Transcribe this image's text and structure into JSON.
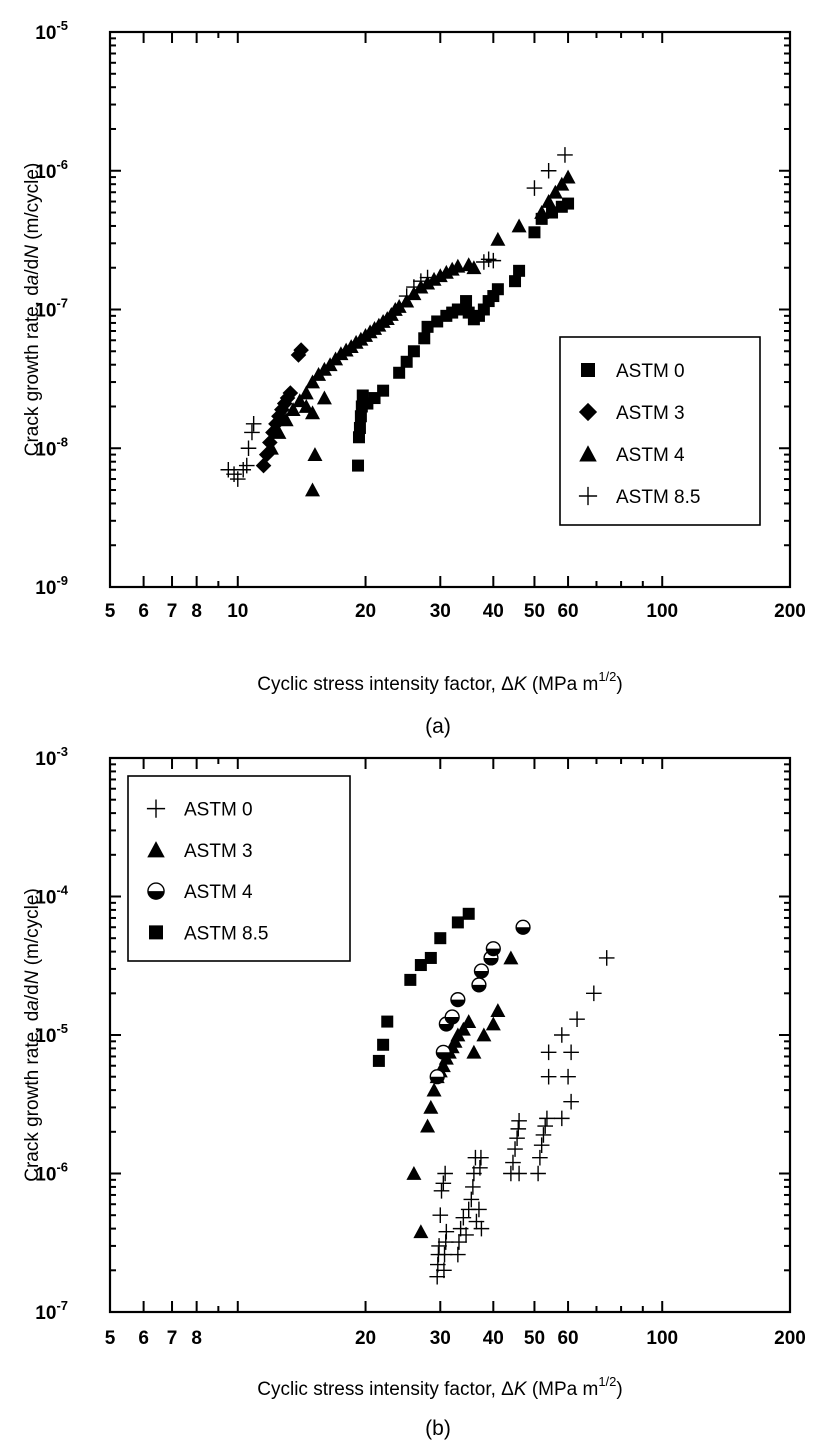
{
  "chart_data": [
    {
      "id": "a",
      "type": "scatter",
      "caption": "(a)",
      "x_scale": "log",
      "y_scale": "log",
      "xlim": [
        5,
        200
      ],
      "ylim": [
        1e-09,
        1e-05
      ],
      "x_tick_labels": [
        {
          "value": 5,
          "label": "5"
        },
        {
          "value": 6,
          "label": "6"
        },
        {
          "value": 7,
          "label": "7"
        },
        {
          "value": 8,
          "label": "8"
        },
        {
          "value": 10,
          "label": "10"
        },
        {
          "value": 20,
          "label": "20"
        },
        {
          "value": 30,
          "label": "30"
        },
        {
          "value": 40,
          "label": "40"
        },
        {
          "value": 50,
          "label": "50"
        },
        {
          "value": 60,
          "label": "60"
        },
        {
          "value": 100,
          "label": "100"
        },
        {
          "value": 200,
          "label": "200"
        }
      ],
      "y_tick_labels": [
        {
          "value": 1e-09,
          "base": "10",
          "exp": "-9"
        },
        {
          "value": 1e-08,
          "base": "10",
          "exp": "-8"
        },
        {
          "value": 1e-07,
          "base": "10",
          "exp": "-7"
        },
        {
          "value": 1e-06,
          "base": "10",
          "exp": "-6"
        },
        {
          "value": 1e-05,
          "base": "10",
          "exp": "-5"
        }
      ],
      "xlabel": {
        "main": "Cyclic stress intensity factor, ",
        "symbol": "Δ",
        "var": "K",
        "unit_open": " (MPa m",
        "unit_exp": "1/2",
        "unit_close": ")"
      },
      "ylabel": {
        "main": "Crack growth rate, d",
        "var1": "a",
        "mid": "/d",
        "var2": "N",
        "unit": " (m/cycle)"
      },
      "grid": false,
      "legend": "middle-right",
      "series": [
        {
          "name": "ASTM 0",
          "marker": "square",
          "points": [
            [
              19.2,
              7.5e-09
            ],
            [
              19.3,
              1.2e-08
            ],
            [
              19.4,
              1.4e-08
            ],
            [
              19.5,
              1.7e-08
            ],
            [
              19.6,
              2e-08
            ],
            [
              19.7,
              2.4e-08
            ],
            [
              20.2,
              2.1e-08
            ],
            [
              21.0,
              2.3e-08
            ],
            [
              22.0,
              2.6e-08
            ],
            [
              24.0,
              3.5e-08
            ],
            [
              25.0,
              4.2e-08
            ],
            [
              26.0,
              5e-08
            ],
            [
              27.5,
              6.2e-08
            ],
            [
              28.0,
              7.5e-08
            ],
            [
              29.5,
              8.2e-08
            ],
            [
              31.0,
              9e-08
            ],
            [
              32.0,
              9.5e-08
            ],
            [
              33.0,
              1e-07
            ],
            [
              34.5,
              1.15e-07
            ],
            [
              35.0,
              9.5e-08
            ],
            [
              36.0,
              8.5e-08
            ],
            [
              37.0,
              9e-08
            ],
            [
              38.0,
              1e-07
            ],
            [
              39.0,
              1.15e-07
            ],
            [
              40.0,
              1.25e-07
            ],
            [
              41.0,
              1.4e-07
            ],
            [
              45.0,
              1.6e-07
            ],
            [
              46.0,
              1.9e-07
            ],
            [
              50.0,
              3.6e-07
            ],
            [
              52.0,
              4.5e-07
            ],
            [
              55.0,
              5e-07
            ],
            [
              58.0,
              5.5e-07
            ],
            [
              60.0,
              5.8e-07
            ]
          ]
        },
        {
          "name": "ASTM 3",
          "marker": "diamond",
          "points": [
            [
              11.5,
              7.5e-09
            ],
            [
              11.7,
              9e-09
            ],
            [
              11.9,
              1.1e-08
            ],
            [
              12.1,
              1.3e-08
            ],
            [
              12.3,
              1.5e-08
            ],
            [
              12.5,
              1.7e-08
            ],
            [
              12.7,
              1.9e-08
            ],
            [
              12.9,
              2.1e-08
            ],
            [
              13.1,
              2.3e-08
            ],
            [
              13.3,
              2.5e-08
            ],
            [
              13.9,
              4.7e-08
            ],
            [
              14.1,
              5.1e-08
            ]
          ]
        },
        {
          "name": "ASTM 4",
          "marker": "triangle",
          "points": [
            [
              12.0,
              1e-08
            ],
            [
              12.5,
              1.3e-08
            ],
            [
              13.0,
              1.6e-08
            ],
            [
              13.5,
              1.9e-08
            ],
            [
              14.0,
              2.2e-08
            ],
            [
              14.5,
              2.5e-08
            ],
            [
              15.0,
              3e-08
            ],
            [
              15.5,
              3.4e-08
            ],
            [
              16.0,
              3.7e-08
            ],
            [
              16.5,
              4e-08
            ],
            [
              17.0,
              4.4e-08
            ],
            [
              17.5,
              4.8e-08
            ],
            [
              18.0,
              5.1e-08
            ],
            [
              18.5,
              5.4e-08
            ],
            [
              19.0,
              5.8e-08
            ],
            [
              19.5,
              6.1e-08
            ],
            [
              20.0,
              6.5e-08
            ],
            [
              20.5,
              6.9e-08
            ],
            [
              21.0,
              7.3e-08
            ],
            [
              21.5,
              7.7e-08
            ],
            [
              22.0,
              8.2e-08
            ],
            [
              22.5,
              8.6e-08
            ],
            [
              23.0,
              9.2e-08
            ],
            [
              23.5,
              1e-07
            ],
            [
              24.0,
              1.05e-07
            ],
            [
              25.0,
              1.15e-07
            ],
            [
              26.0,
              1.3e-07
            ],
            [
              27.0,
              1.45e-07
            ],
            [
              28.0,
              1.55e-07
            ],
            [
              29.0,
              1.65e-07
            ],
            [
              30.0,
              1.75e-07
            ],
            [
              31.0,
              1.85e-07
            ],
            [
              32.0,
              1.95e-07
            ],
            [
              33.0,
              2.05e-07
            ],
            [
              35.0,
              2.1e-07
            ],
            [
              36.0,
              2e-07
            ],
            [
              15.0,
              1.8e-08
            ],
            [
              15.2,
              9e-09
            ],
            [
              15.0,
              5e-09
            ],
            [
              16.0,
              2.3e-08
            ],
            [
              14.5,
              2e-08
            ],
            [
              41.0,
              3.2e-07
            ],
            [
              46.0,
              4e-07
            ],
            [
              52.0,
              5e-07
            ],
            [
              54.0,
              6e-07
            ],
            [
              56.0,
              7e-07
            ],
            [
              58.0,
              8e-07
            ],
            [
              60.0,
              9e-07
            ]
          ]
        },
        {
          "name": "ASTM 8.5",
          "marker": "plus",
          "points": [
            [
              9.5,
              7e-09
            ],
            [
              9.8,
              6.5e-09
            ],
            [
              10.0,
              6e-09
            ],
            [
              10.3,
              7e-09
            ],
            [
              10.5,
              7.5e-09
            ],
            [
              10.6,
              1e-08
            ],
            [
              10.8,
              1.3e-08
            ],
            [
              10.9,
              1.5e-08
            ],
            [
              25.0,
              1.25e-07
            ],
            [
              26.0,
              1.45e-07
            ],
            [
              27.0,
              1.6e-07
            ],
            [
              28.0,
              1.7e-07
            ],
            [
              38.0,
              2.2e-07
            ],
            [
              39.0,
              2.3e-07
            ],
            [
              40.0,
              2.25e-07
            ],
            [
              50.0,
              7.5e-07
            ],
            [
              54.0,
              1e-06
            ],
            [
              59.0,
              1.3e-06
            ]
          ]
        }
      ]
    },
    {
      "id": "b",
      "type": "scatter",
      "caption": "(b)",
      "x_scale": "log",
      "y_scale": "log",
      "xlim": [
        5,
        200
      ],
      "ylim": [
        1e-07,
        0.001
      ],
      "x_tick_labels": [
        {
          "value": 5,
          "label": "5"
        },
        {
          "value": 6,
          "label": "6"
        },
        {
          "value": 7,
          "label": "7"
        },
        {
          "value": 8,
          "label": "8"
        },
        {
          "value": 20,
          "label": "20"
        },
        {
          "value": 30,
          "label": "30"
        },
        {
          "value": 40,
          "label": "40"
        },
        {
          "value": 50,
          "label": "50"
        },
        {
          "value": 60,
          "label": "60"
        },
        {
          "value": 100,
          "label": "100"
        },
        {
          "value": 200,
          "label": "200"
        }
      ],
      "y_tick_labels": [
        {
          "value": 1e-07,
          "base": "10",
          "exp": "-7"
        },
        {
          "value": 1e-06,
          "base": "10",
          "exp": "-6"
        },
        {
          "value": 1e-05,
          "base": "10",
          "exp": "-5"
        },
        {
          "value": 0.0001,
          "base": "10",
          "exp": "-4"
        },
        {
          "value": 0.001,
          "base": "10",
          "exp": "-3"
        }
      ],
      "xlabel": {
        "main": "Cyclic stress intensity factor, ",
        "symbol": "Δ",
        "var": "K",
        "unit_open": " (MPa m",
        "unit_exp": "1/2",
        "unit_close": ")"
      },
      "ylabel": {
        "main": "Crack growth rate, d",
        "var1": "a",
        "mid": "/d",
        "var2": "N",
        "unit": " (m/cycle)"
      },
      "grid": false,
      "legend": "top-left",
      "series": [
        {
          "name": "ASTM 0",
          "marker": "plus",
          "points": [
            [
              29.5,
              1.8e-07
            ],
            [
              29.6,
              2.2e-07
            ],
            [
              29.7,
              2.6e-07
            ],
            [
              29.8,
              3e-07
            ],
            [
              30.0,
              5e-07
            ],
            [
              30.2,
              7.5e-07
            ],
            [
              30.5,
              8.5e-07
            ],
            [
              30.8,
              1e-06
            ],
            [
              30.6,
              2e-07
            ],
            [
              30.7,
              2.6e-07
            ],
            [
              30.9,
              3.2e-07
            ],
            [
              31.0,
              3.8e-07
            ],
            [
              33.0,
              2.6e-07
            ],
            [
              33.2,
              3.2e-07
            ],
            [
              33.5,
              4e-07
            ],
            [
              34.0,
              4.8e-07
            ],
            [
              34.5,
              3.6e-07
            ],
            [
              35.0,
              5.5e-07
            ],
            [
              35.5,
              6.5e-07
            ],
            [
              35.8,
              8e-07
            ],
            [
              36.0,
              1e-06
            ],
            [
              36.3,
              1.3e-06
            ],
            [
              36.5,
              4.5e-07
            ],
            [
              37.0,
              5.5e-07
            ],
            [
              37.2,
              1.1e-06
            ],
            [
              37.4,
              1.3e-06
            ],
            [
              37.5,
              4e-07
            ],
            [
              44.0,
              1e-06
            ],
            [
              44.5,
              1.2e-06
            ],
            [
              45.0,
              1.5e-06
            ],
            [
              45.5,
              1.8e-06
            ],
            [
              45.8,
              2.1e-06
            ],
            [
              46.0,
              2.4e-06
            ],
            [
              46.0,
              1e-06
            ],
            [
              51.0,
              1e-06
            ],
            [
              51.5,
              1.3e-06
            ],
            [
              52.0,
              1.6e-06
            ],
            [
              52.5,
              1.9e-06
            ],
            [
              53.0,
              2.2e-06
            ],
            [
              53.5,
              2.5e-06
            ],
            [
              54.0,
              5e-06
            ],
            [
              54.0,
              7.5e-06
            ],
            [
              58.0,
              2.5e-06
            ],
            [
              58.0,
              1e-05
            ],
            [
              60.0,
              5e-06
            ],
            [
              61.0,
              3.3e-06
            ],
            [
              61.0,
              7.5e-06
            ],
            [
              63.0,
              1.3e-05
            ],
            [
              69.0,
              2e-05
            ],
            [
              74.0,
              3.6e-05
            ]
          ]
        },
        {
          "name": "ASTM 3",
          "marker": "triangle",
          "points": [
            [
              26.0,
              1e-06
            ],
            [
              27.0,
              3.8e-07
            ],
            [
              28.0,
              2.2e-06
            ],
            [
              28.5,
              3e-06
            ],
            [
              29.0,
              4e-06
            ],
            [
              29.5,
              5e-06
            ],
            [
              30.0,
              5.5e-06
            ],
            [
              30.5,
              6e-06
            ],
            [
              31.0,
              6.8e-06
            ],
            [
              31.5,
              7.5e-06
            ],
            [
              32.0,
              8.2e-06
            ],
            [
              32.5,
              9e-06
            ],
            [
              33.0,
              1e-05
            ],
            [
              34.0,
              1.1e-05
            ],
            [
              35.0,
              1.25e-05
            ],
            [
              36.0,
              7.5e-06
            ],
            [
              38.0,
              1e-05
            ],
            [
              40.0,
              1.2e-05
            ],
            [
              41.0,
              1.5e-05
            ],
            [
              44.0,
              3.6e-05
            ]
          ]
        },
        {
          "name": "ASTM 4",
          "marker": "halfcircle",
          "points": [
            [
              29.5,
              5e-06
            ],
            [
              30.5,
              7.5e-06
            ],
            [
              31.0,
              1.2e-05
            ],
            [
              32.0,
              1.35e-05
            ],
            [
              33.0,
              1.8e-05
            ],
            [
              37.0,
              2.3e-05
            ],
            [
              37.5,
              2.9e-05
            ],
            [
              39.5,
              3.6e-05
            ],
            [
              40.0,
              4.2e-05
            ],
            [
              47.0,
              6e-05
            ]
          ]
        },
        {
          "name": "ASTM 8.5",
          "marker": "square",
          "points": [
            [
              21.5,
              6.5e-06
            ],
            [
              22.0,
              8.5e-06
            ],
            [
              22.5,
              1.25e-05
            ],
            [
              25.5,
              2.5e-05
            ],
            [
              27.0,
              3.2e-05
            ],
            [
              28.5,
              3.6e-05
            ],
            [
              30.0,
              5e-05
            ],
            [
              33.0,
              6.5e-05
            ],
            [
              35.0,
              7.5e-05
            ]
          ]
        }
      ]
    }
  ]
}
